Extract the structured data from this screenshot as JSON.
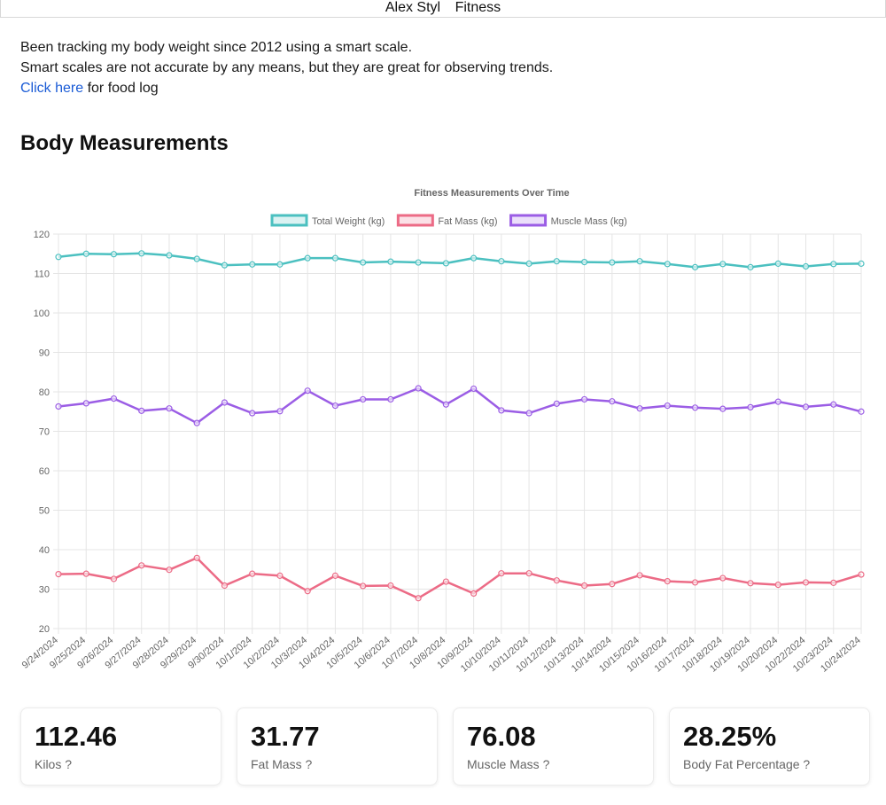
{
  "nav": {
    "name_link": "Alex Styl",
    "fitness_link": "Fitness"
  },
  "intro": {
    "line1": "Been tracking my body weight since 2012 using a smart scale.",
    "line2": "Smart scales are not accurate by any means, but they are great for observing trends.",
    "link_text": "Click here",
    "link_suffix": " for food log"
  },
  "section_title": "Body Measurements",
  "chart_data": {
    "type": "line",
    "title": "Fitness Measurements Over Time",
    "xlabel": "",
    "ylabel": "",
    "ylim": [
      20,
      120
    ],
    "yticks": [
      20,
      30,
      40,
      50,
      60,
      70,
      80,
      90,
      100,
      110,
      120
    ],
    "grid": true,
    "legend_position": "top",
    "categories": [
      "9/24/2024",
      "9/25/2024",
      "9/26/2024",
      "9/27/2024",
      "9/28/2024",
      "9/29/2024",
      "9/30/2024",
      "10/1/2024",
      "10/2/2024",
      "10/3/2024",
      "10/4/2024",
      "10/5/2024",
      "10/6/2024",
      "10/7/2024",
      "10/8/2024",
      "10/9/2024",
      "10/10/2024",
      "10/11/2024",
      "10/12/2024",
      "10/13/2024",
      "10/14/2024",
      "10/15/2024",
      "10/16/2024",
      "10/17/2024",
      "10/18/2024",
      "10/19/2024",
      "10/20/2024",
      "10/22/2024",
      "10/23/2024",
      "10/24/2024"
    ],
    "series": [
      {
        "name": "Total Weight (kg)",
        "color": "#4bc0c0",
        "values": [
          114.2,
          115.0,
          114.9,
          115.1,
          114.6,
          113.7,
          112.1,
          112.3,
          112.3,
          113.9,
          113.9,
          112.8,
          113.0,
          112.8,
          112.6,
          113.9,
          113.1,
          112.5,
          113.1,
          112.9,
          112.8,
          113.1,
          112.4,
          111.6,
          112.4,
          111.6,
          112.5,
          111.8,
          112.4,
          112.5
        ]
      },
      {
        "name": "Fat Mass (kg)",
        "color": "#ec6b86",
        "values": [
          33.8,
          33.9,
          32.6,
          36.0,
          34.9,
          37.9,
          30.9,
          33.9,
          33.4,
          29.5,
          33.4,
          30.8,
          30.9,
          27.7,
          31.9,
          28.9,
          34.0,
          34.0,
          32.2,
          30.9,
          31.3,
          33.5,
          32.0,
          31.7,
          32.8,
          31.5,
          31.1,
          31.7,
          31.6,
          33.7
        ]
      },
      {
        "name": "Muscle Mass (kg)",
        "color": "#9b5de5",
        "values": [
          76.3,
          77.1,
          78.3,
          75.2,
          75.8,
          72.1,
          77.3,
          74.6,
          75.1,
          80.3,
          76.5,
          78.1,
          78.1,
          80.9,
          76.8,
          80.8,
          75.3,
          74.6,
          77.0,
          78.1,
          77.6,
          75.8,
          76.5,
          76.0,
          75.7,
          76.1,
          77.5,
          76.2,
          76.8,
          75.0
        ]
      }
    ]
  },
  "stats": [
    {
      "value": "112.46",
      "label": "Kilos ?"
    },
    {
      "value": "31.77",
      "label": "Fat Mass ?"
    },
    {
      "value": "76.08",
      "label": "Muscle Mass ?"
    },
    {
      "value": "28.25%",
      "label": "Body Fat Percentage ?"
    }
  ]
}
